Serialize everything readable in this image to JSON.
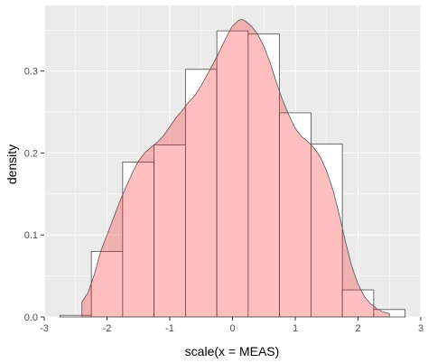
{
  "chart_data": {
    "type": "histogram-density",
    "xlabel": "scale(x = MEAS)",
    "ylabel": "density",
    "xlim": [
      -3,
      3
    ],
    "ylim": [
      0,
      0.38
    ],
    "x_ticks": [
      -3,
      -2,
      -1,
      0,
      1,
      2,
      3
    ],
    "x_tick_labels": [
      "-3",
      "-2",
      "-1",
      "0",
      "1",
      "2",
      "3"
    ],
    "y_ticks": [
      0.0,
      0.1,
      0.2,
      0.3
    ],
    "y_tick_labels": [
      "0.0",
      "0.1",
      "0.2",
      "0.3"
    ],
    "grid": true,
    "histogram": {
      "bins": [
        {
          "x0": -2.75,
          "x1": -2.25,
          "density": 0.002
        },
        {
          "x0": -2.25,
          "x1": -1.75,
          "density": 0.08
        },
        {
          "x0": -1.75,
          "x1": -1.25,
          "density": 0.189
        },
        {
          "x0": -1.25,
          "x1": -0.75,
          "density": 0.21
        },
        {
          "x0": -0.75,
          "x1": -0.25,
          "density": 0.302
        },
        {
          "x0": -0.25,
          "x1": 0.25,
          "density": 0.349
        },
        {
          "x0": 0.25,
          "x1": 0.75,
          "density": 0.345
        },
        {
          "x0": 0.75,
          "x1": 1.25,
          "density": 0.249
        },
        {
          "x0": 1.25,
          "x1": 1.75,
          "density": 0.211
        },
        {
          "x0": 1.75,
          "x1": 2.25,
          "density": 0.033
        },
        {
          "x0": 2.25,
          "x1": 2.75,
          "density": 0.009
        }
      ]
    },
    "density_curve": {
      "x": [
        -2.4,
        -2.3,
        -2.2,
        -2.1,
        -2.0,
        -1.9,
        -1.8,
        -1.7,
        -1.6,
        -1.5,
        -1.4,
        -1.3,
        -1.2,
        -1.1,
        -1.0,
        -0.9,
        -0.8,
        -0.7,
        -0.6,
        -0.5,
        -0.4,
        -0.3,
        -0.2,
        -0.1,
        0.0,
        0.1,
        0.15,
        0.2,
        0.3,
        0.4,
        0.5,
        0.6,
        0.7,
        0.8,
        0.9,
        1.0,
        1.1,
        1.2,
        1.3,
        1.4,
        1.5,
        1.6,
        1.7,
        1.8,
        1.9,
        2.0,
        2.1,
        2.2,
        2.3,
        2.4,
        2.5
      ],
      "y": [
        0.018,
        0.03,
        0.052,
        0.08,
        0.1,
        0.12,
        0.14,
        0.158,
        0.175,
        0.19,
        0.2,
        0.207,
        0.213,
        0.221,
        0.232,
        0.243,
        0.252,
        0.262,
        0.27,
        0.282,
        0.296,
        0.31,
        0.325,
        0.341,
        0.355,
        0.362,
        0.363,
        0.361,
        0.355,
        0.345,
        0.33,
        0.31,
        0.286,
        0.264,
        0.246,
        0.23,
        0.22,
        0.214,
        0.206,
        0.195,
        0.178,
        0.155,
        0.125,
        0.092,
        0.062,
        0.04,
        0.025,
        0.016,
        0.01,
        0.006,
        0.004
      ],
      "fill": "#ff0000",
      "fill_opacity": 0.25
    },
    "colors": {
      "panel_background": "#ebebeb",
      "grid": "#ffffff",
      "bar_fill": "#ffffff",
      "bar_outline": "#333333",
      "density_fill": "#ffc0c0",
      "density_outline": "#555555"
    }
  }
}
